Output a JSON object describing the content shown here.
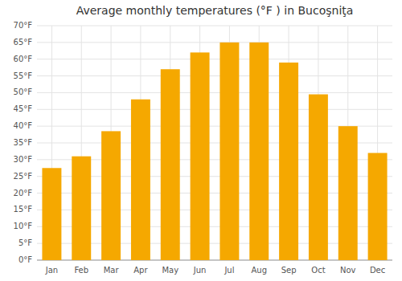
{
  "chart_data": {
    "type": "bar",
    "title": "Average monthly temperatures (°F ) in Bucoşniţa",
    "categories": [
      "Jan",
      "Feb",
      "Mar",
      "Apr",
      "May",
      "Jun",
      "Jul",
      "Aug",
      "Sep",
      "Oct",
      "Nov",
      "Dec"
    ],
    "values": [
      27.5,
      31.0,
      38.5,
      48.0,
      57.0,
      62.0,
      65.0,
      65.0,
      59.0,
      49.5,
      40.0,
      32.0
    ],
    "color": "#F5A800",
    "ylim": [
      0,
      70
    ],
    "yticks": [
      {
        "value": 0,
        "label": "0°F"
      },
      {
        "value": 5,
        "label": "5°F"
      },
      {
        "value": 10,
        "label": "10°F"
      },
      {
        "value": 15,
        "label": "15°F"
      },
      {
        "value": 20,
        "label": "20°F"
      },
      {
        "value": 25,
        "label": "25°F"
      },
      {
        "value": 30,
        "label": "30°F"
      },
      {
        "value": 35,
        "label": "35°F"
      },
      {
        "value": 40,
        "label": "40°F"
      },
      {
        "value": 45,
        "label": "45°F"
      },
      {
        "value": 50,
        "label": "50°F"
      },
      {
        "value": 55,
        "label": "55°F"
      },
      {
        "value": 60,
        "label": "60°F"
      },
      {
        "value": 65,
        "label": "65°F"
      },
      {
        "value": 70,
        "label": "70°F"
      }
    ],
    "grid": true
  }
}
